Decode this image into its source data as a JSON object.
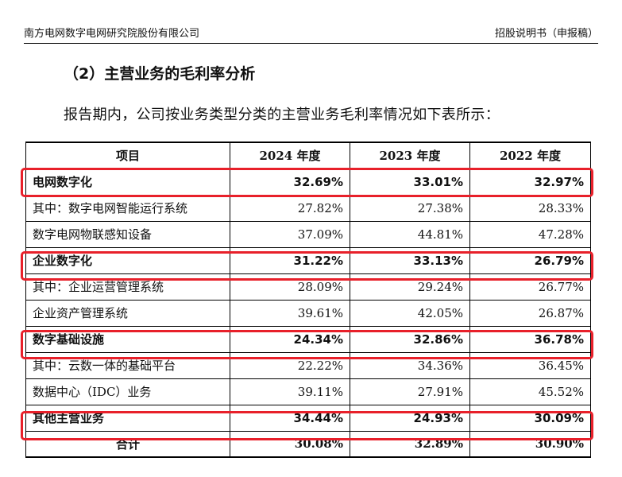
{
  "header": {
    "company": "南方电网数字电网研究院股份有限公司",
    "doc_type": "招股说明书（申报稿）"
  },
  "section": {
    "heading": "（2）主营业务的毛利率分析",
    "intro": "报告期内，公司按业务类型分类的主营业务毛利率情况如下表所示："
  },
  "table": {
    "headers": [
      "项目",
      "2024 年度",
      "2023 年度",
      "2022 年度"
    ],
    "rows": [
      {
        "item": "电网数字化",
        "y2024": "32.69%",
        "y2023": "33.01%",
        "y2022": "32.97%"
      },
      {
        "item": "其中：数字电网智能运行系统",
        "y2024": "27.82%",
        "y2023": "27.38%",
        "y2022": "28.33%"
      },
      {
        "item": "数字电网物联感知设备",
        "y2024": "37.09%",
        "y2023": "44.81%",
        "y2022": "47.28%"
      },
      {
        "item": "企业数字化",
        "y2024": "31.22%",
        "y2023": "33.13%",
        "y2022": "26.79%"
      },
      {
        "item": "其中：企业运营管理系统",
        "y2024": "28.09%",
        "y2023": "29.24%",
        "y2022": "26.77%"
      },
      {
        "item": "企业资产管理系统",
        "y2024": "39.61%",
        "y2023": "42.05%",
        "y2022": "26.87%"
      },
      {
        "item": "数字基础设施",
        "y2024": "24.34%",
        "y2023": "32.86%",
        "y2022": "36.78%"
      },
      {
        "item": "其中：云数一体的基础平台",
        "y2024": "22.22%",
        "y2023": "34.36%",
        "y2022": "36.45%"
      },
      {
        "item": "数据中心（IDC）业务",
        "y2024": "39.11%",
        "y2023": "27.91%",
        "y2022": "45.52%"
      },
      {
        "item": "其他主营业务",
        "y2024": "34.44%",
        "y2023": "24.93%",
        "y2022": "30.09%"
      },
      {
        "item": "合计",
        "y2024": "30.08%",
        "y2023": "32.89%",
        "y2022": "30.90%"
      }
    ]
  },
  "highlight_color": "#e8202a"
}
